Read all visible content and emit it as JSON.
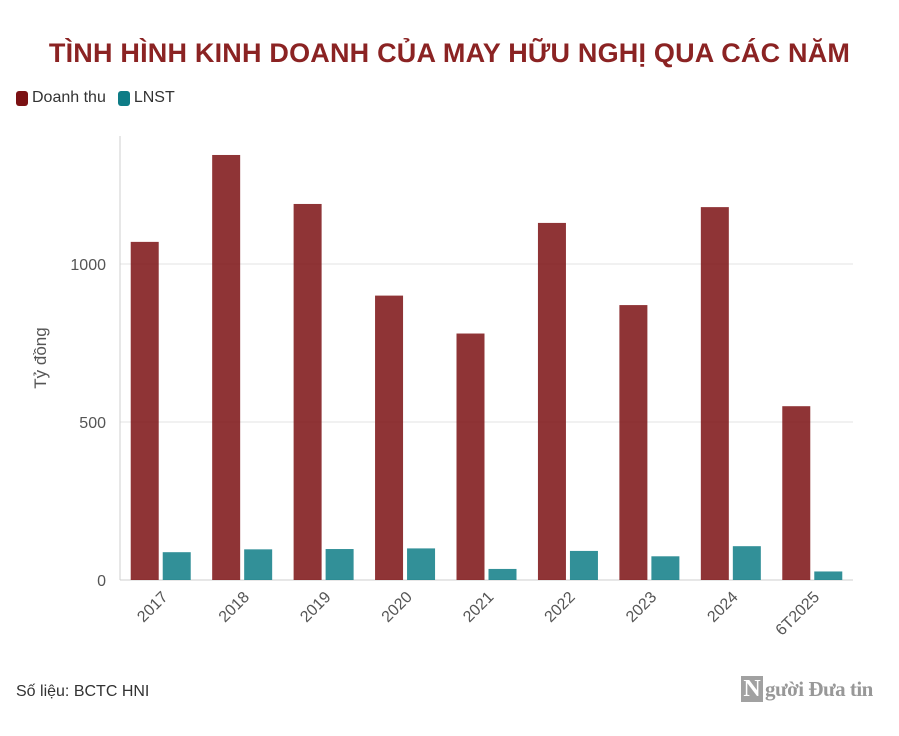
{
  "chart_data": {
    "type": "bar",
    "title": "TÌNH HÌNH KINH DOANH CỦA MAY HỮU NGHỊ QUA CÁC NĂM",
    "ylabel": "Tỷ đồng",
    "xlabel": "",
    "categories": [
      "2017",
      "2018",
      "2019",
      "2020",
      "2021",
      "2022",
      "2023",
      "2024",
      "6T2025"
    ],
    "series": [
      {
        "name": "Doanh thu",
        "color": "#7b1113",
        "values": [
          1070,
          1345,
          1190,
          900,
          780,
          1130,
          870,
          1180,
          550
        ]
      },
      {
        "name": "LNST",
        "color": "#0e7c86",
        "values": [
          88,
          97,
          98,
          100,
          35,
          92,
          75,
          107,
          27
        ]
      }
    ],
    "yticks": [
      0,
      500,
      1000
    ],
    "ylim": [
      0,
      1400
    ],
    "grid": true,
    "legend_position": "top-left"
  },
  "colors": {
    "title": "#8b2323",
    "grid": "#e3e3e3",
    "axis_text": "#555555"
  },
  "source_text": "Số liệu: BCTC HNI",
  "logo": {
    "letter": "N",
    "text": "gười Đưa tin"
  }
}
